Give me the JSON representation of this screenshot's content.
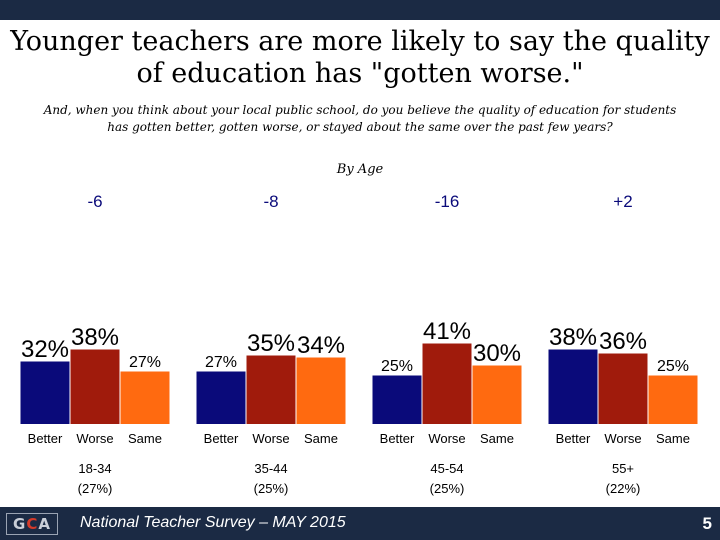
{
  "header": {
    "title_line1": "Younger teachers are more likely to say the quality",
    "title_line2": "of education has \"gotten worse.\"",
    "question_line1": "And, when you think about your local public school, do you believe the quality of education for students",
    "question_line2": "has gotten better, gotten worse, or stayed about the same over the past few years?",
    "subtitle": "By Age"
  },
  "chart_data": {
    "type": "bar",
    "series_names": [
      "Better",
      "Worse",
      "Same"
    ],
    "colors": {
      "Better": "#0a0a7a",
      "Worse": "#a01b0c",
      "Same": "#ff6a10",
      "diff": "#0a0a7a"
    },
    "groups": [
      {
        "label": "18-34",
        "sublabel": "(27%)",
        "diff": "-6",
        "values": [
          32,
          38,
          27
        ]
      },
      {
        "label": "35-44",
        "sublabel": "(25%)",
        "diff": "-8",
        "values": [
          27,
          35,
          34
        ]
      },
      {
        "label": "45-54",
        "sublabel": "(25%)",
        "diff": "-16",
        "values": [
          25,
          41,
          30
        ]
      },
      {
        "label": "55+",
        "sublabel": "(22%)",
        "diff": "+2",
        "values": [
          38,
          36,
          25
        ]
      }
    ],
    "value_format": "{v}%"
  },
  "footer": {
    "logo_left": "G",
    "logo_mid": "C",
    "logo_right": "A",
    "text": "National Teacher Survey – MAY 2015",
    "page": "5"
  }
}
